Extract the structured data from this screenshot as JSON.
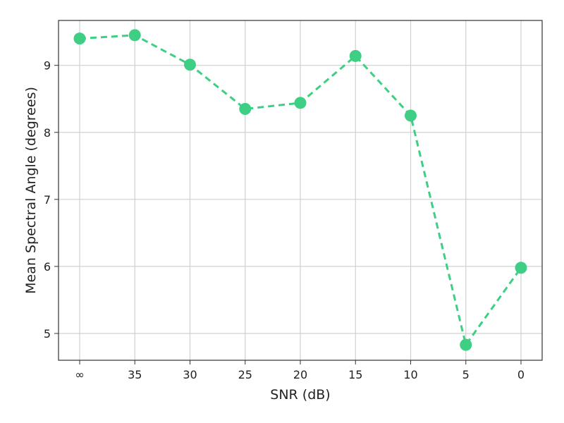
{
  "chart_data": {
    "type": "line",
    "categories": [
      "∞",
      "35",
      "30",
      "25",
      "20",
      "15",
      "10",
      "5",
      "0"
    ],
    "values": [
      9.4,
      9.45,
      9.01,
      8.35,
      8.44,
      9.14,
      8.25,
      4.83,
      5.98
    ],
    "xlabel": "SNR (dB)",
    "ylabel": "Mean Spectral Angle (degrees)",
    "ylim": [
      4.6,
      9.67
    ],
    "yticks": [
      5,
      6,
      7,
      8,
      9
    ],
    "grid": true,
    "line_style": "dashed",
    "marker": "circle",
    "color": "#3ecf84"
  }
}
